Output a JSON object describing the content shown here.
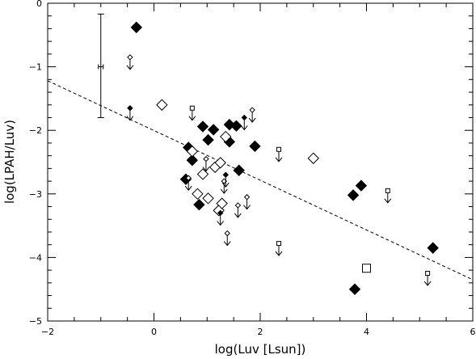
{
  "chart_data": {
    "type": "scatter",
    "title": "",
    "xlabel": "log(Luv [Lsun])",
    "ylabel": "log(LPAH/Luv)",
    "xlim": [
      -2,
      6
    ],
    "ylim": [
      -5,
      0
    ],
    "x_ticks": [
      -2,
      0,
      2,
      4,
      6
    ],
    "y_ticks": [
      0,
      -1,
      -2,
      -3,
      -4,
      -5
    ],
    "x_tick_labels": [
      "−2",
      "0",
      "2",
      "4",
      "6"
    ],
    "y_tick_labels": [
      "0",
      "−1",
      "−2",
      "−3",
      "−4",
      "−5"
    ],
    "grid": false,
    "legend": "none",
    "fit_line": {
      "style": "dashed",
      "points": [
        [
          -2,
          -1.22
        ],
        [
          6,
          -4.35
        ]
      ]
    },
    "error_bar": {
      "x": -1.0,
      "y": -1.0,
      "y_low": -1.8,
      "y_high": -0.17
    },
    "series": [
      {
        "marker": "filled-diamond",
        "points": [
          [
            -0.33,
            -0.38
          ],
          [
            0.65,
            -2.27
          ],
          [
            0.72,
            -2.47
          ],
          [
            0.6,
            -2.77
          ],
          [
            0.85,
            -3.17
          ],
          [
            0.92,
            -1.94
          ],
          [
            1.02,
            -2.15
          ],
          [
            1.12,
            -1.99
          ],
          [
            1.42,
            -1.91
          ],
          [
            1.42,
            -2.18
          ],
          [
            1.55,
            -1.93
          ],
          [
            1.6,
            -2.63
          ],
          [
            1.9,
            -2.25
          ],
          [
            3.75,
            -3.02
          ],
          [
            3.9,
            -2.87
          ],
          [
            3.78,
            -4.5
          ],
          [
            5.25,
            -3.85
          ]
        ]
      },
      {
        "marker": "open-diamond",
        "points": [
          [
            0.15,
            -1.6
          ],
          [
            0.72,
            -2.33
          ],
          [
            0.82,
            -3.0
          ],
          [
            0.92,
            -2.69
          ],
          [
            1.02,
            -3.07
          ],
          [
            1.15,
            -2.58
          ],
          [
            1.25,
            -2.51
          ],
          [
            1.22,
            -3.26
          ],
          [
            1.28,
            -3.15
          ],
          [
            1.35,
            -2.1
          ],
          [
            3.0,
            -2.44
          ]
        ]
      },
      {
        "marker": "open-square",
        "points": [
          [
            4.0,
            -4.17
          ]
        ]
      },
      {
        "marker": "upper-limit-small-diamond",
        "points": [
          [
            -0.45,
            -0.85
          ],
          [
            0.98,
            -2.45
          ],
          [
            1.32,
            -2.8
          ],
          [
            1.58,
            -3.18
          ],
          [
            1.75,
            -3.05
          ],
          [
            1.38,
            -3.62
          ],
          [
            1.85,
            -1.68
          ],
          [
            0.65,
            -2.75
          ]
        ]
      },
      {
        "marker": "upper-limit-small-filled-diamond",
        "points": [
          [
            -0.45,
            -1.65
          ],
          [
            1.7,
            -1.8
          ],
          [
            1.35,
            -2.7
          ],
          [
            1.25,
            -3.3
          ]
        ]
      },
      {
        "marker": "upper-limit-small-square",
        "points": [
          [
            0.72,
            -1.65
          ],
          [
            2.35,
            -2.3
          ],
          [
            2.35,
            -3.78
          ],
          [
            4.4,
            -2.95
          ],
          [
            5.15,
            -4.25
          ]
        ]
      }
    ]
  }
}
